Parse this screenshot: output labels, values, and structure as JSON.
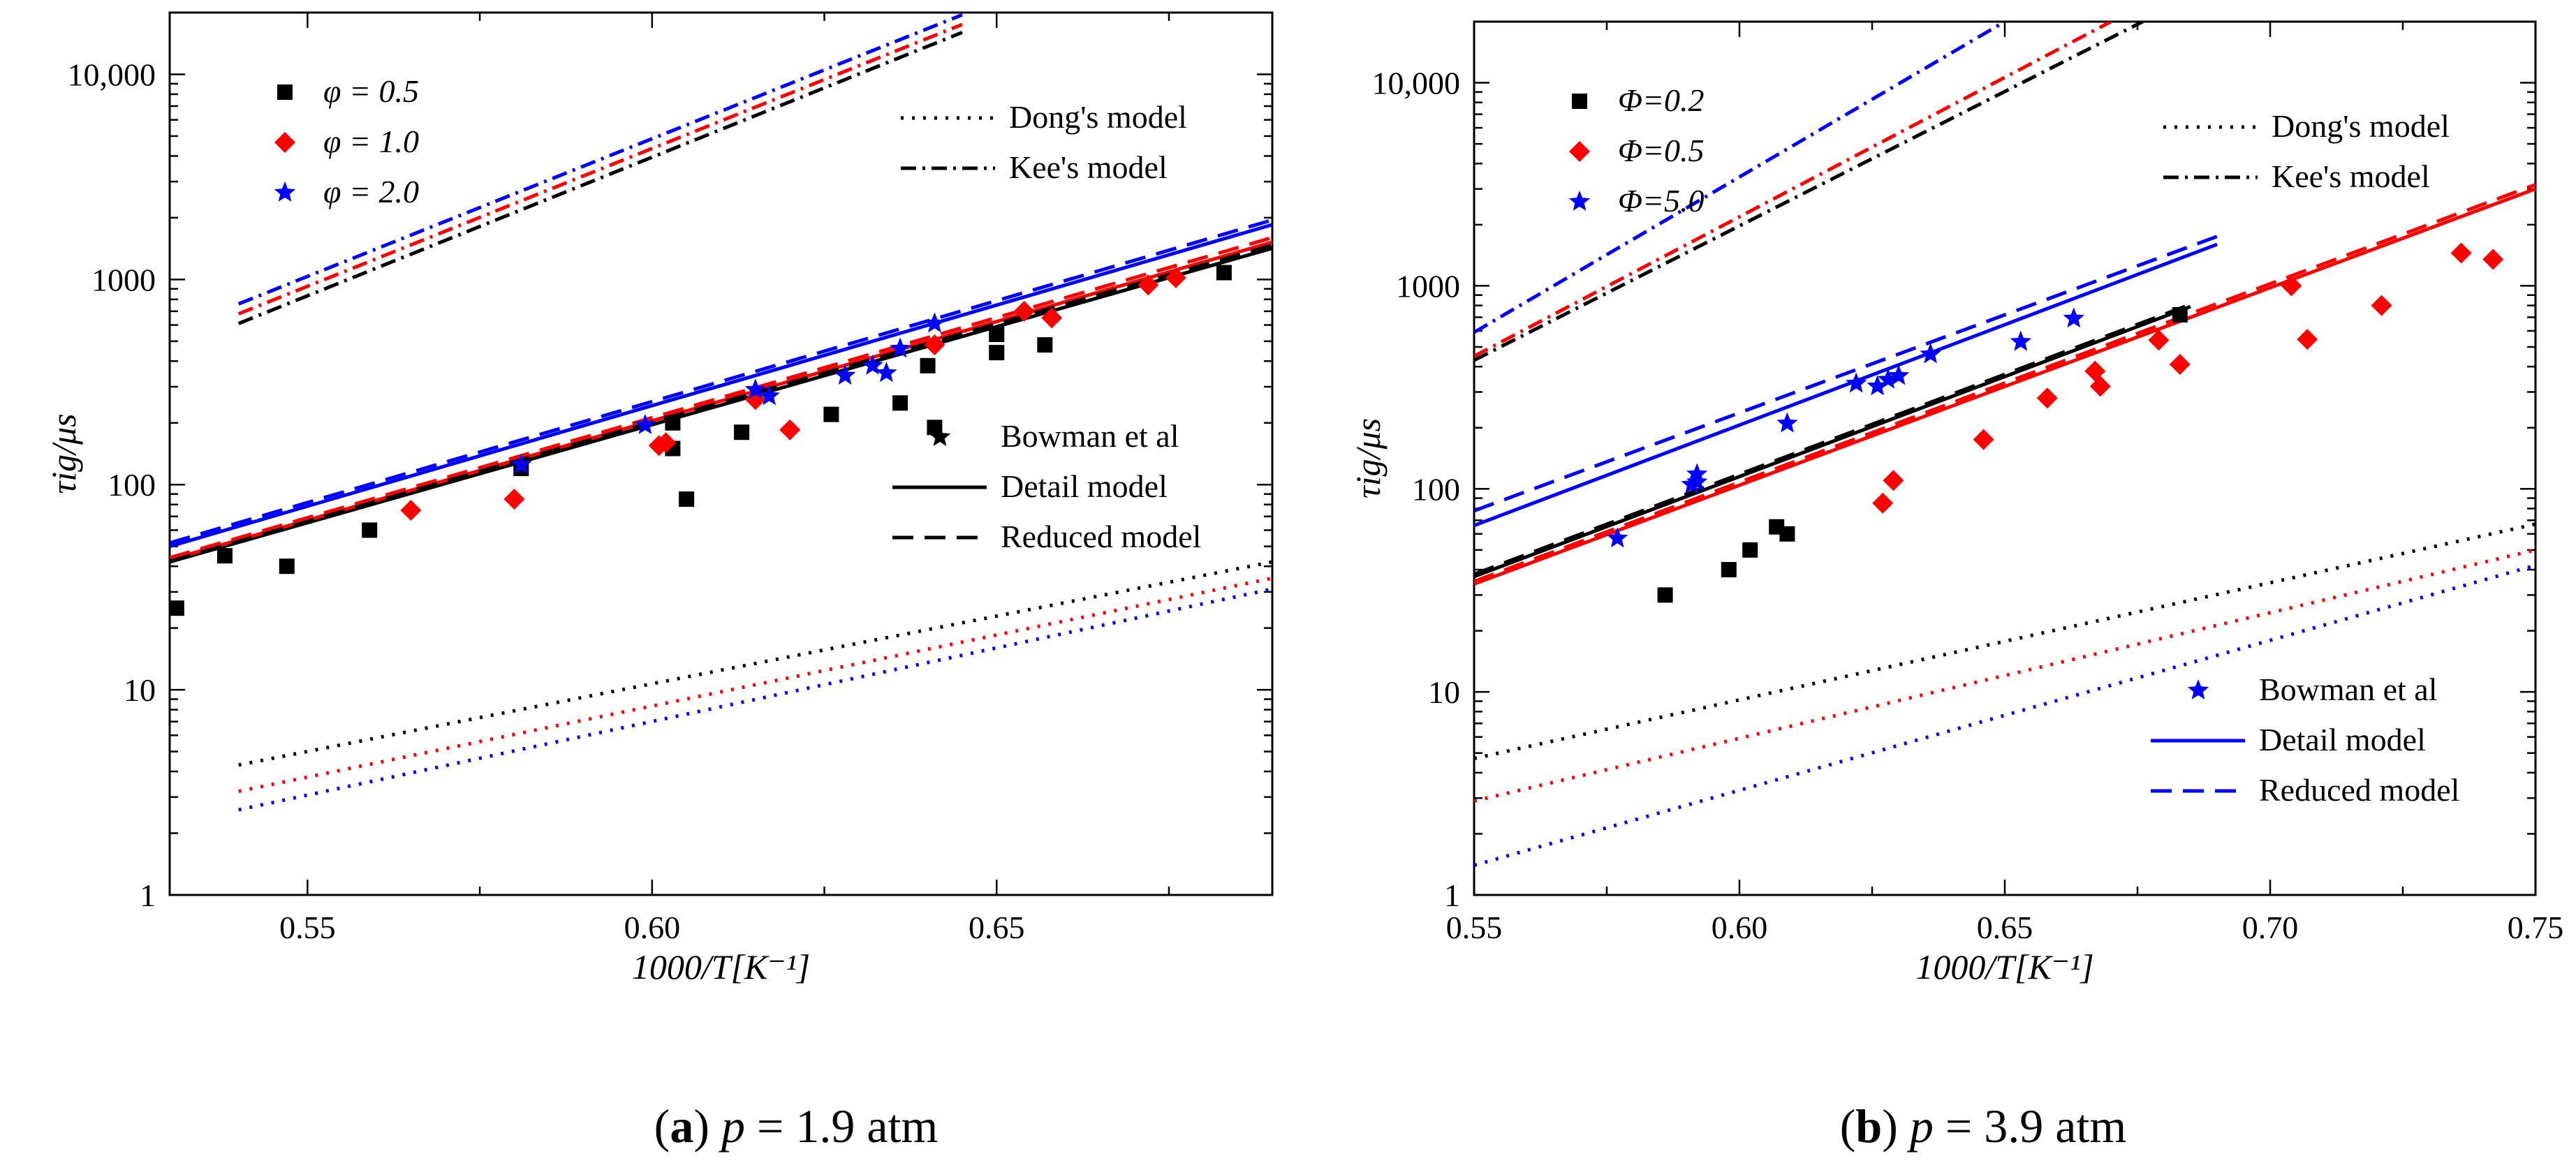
{
  "chart_data": [
    {
      "id": "a",
      "type": "scatter",
      "caption": {
        "label": "a",
        "var": "p",
        "rest": " = 1.9 atm"
      },
      "xlabel": "1000/T[K⁻¹]",
      "ylabel": "τig/μs",
      "xlim": [
        0.53,
        0.69
      ],
      "ylim": [
        1,
        20000
      ],
      "yscale": "log",
      "xticks": [
        0.55,
        0.6,
        0.65
      ],
      "xtick_labels": [
        "0.55",
        "0.60",
        "0.65"
      ],
      "yticks": [
        1,
        10,
        100,
        1000,
        10000
      ],
      "ytick_labels": [
        "1",
        "10",
        "100",
        "1000",
        "10,000"
      ],
      "series_legend": [
        {
          "label": "φ = 0.5",
          "color": "#000000",
          "marker": "square"
        },
        {
          "label": "φ = 1.0",
          "color": "#ff0000",
          "marker": "diamond"
        },
        {
          "label": "φ = 2.0",
          "color": "#0000ff",
          "marker": "star"
        }
      ],
      "model_legend_top": [
        {
          "label": "Dong's model",
          "style": "dotted"
        },
        {
          "label": "Kee's model",
          "style": "dashdot"
        }
      ],
      "model_legend_bottom": [
        {
          "label": "Bowman et al",
          "style": "none"
        },
        {
          "label": "Detail model",
          "style": "solid"
        },
        {
          "label": "Reduced model",
          "style": "dashed"
        }
      ],
      "model_legend_color": "#000000",
      "points": [
        {
          "color": "#000000",
          "marker": "square",
          "x": [
            0.531,
            0.538,
            0.547,
            0.559,
            0.581,
            0.603,
            0.603,
            0.605,
            0.613,
            0.626,
            0.636,
            0.64,
            0.641,
            0.65,
            0.65,
            0.657,
            0.683
          ],
          "y": [
            25,
            45,
            40,
            60,
            120,
            200,
            150,
            85,
            180,
            220,
            250,
            380,
            190,
            540,
            440,
            480,
            1080
          ]
        },
        {
          "color": "#ff0000",
          "marker": "diamond",
          "x": [
            0.565,
            0.58,
            0.601,
            0.602,
            0.615,
            0.62,
            0.641,
            0.654,
            0.658,
            0.672,
            0.676
          ],
          "y": [
            75,
            85,
            155,
            160,
            260,
            185,
            480,
            700,
            650,
            940,
            1020
          ]
        },
        {
          "color": "#0000ff",
          "marker": "star",
          "x": [
            0.581,
            0.599,
            0.615,
            0.617,
            0.628,
            0.632,
            0.634,
            0.636,
            0.641
          ],
          "y": [
            125,
            195,
            290,
            270,
            340,
            380,
            350,
            460,
            610
          ]
        }
      ],
      "lines": [
        {
          "color": "#000000",
          "style": "solid",
          "x": [
            0.53,
            0.69
          ],
          "y": [
            42,
            1420
          ]
        },
        {
          "color": "#ff0000",
          "style": "solid",
          "x": [
            0.53,
            0.69
          ],
          "y": [
            43,
            1520
          ]
        },
        {
          "color": "#0000ff",
          "style": "solid",
          "x": [
            0.53,
            0.69
          ],
          "y": [
            50,
            1850
          ]
        },
        {
          "color": "#000000",
          "style": "dashed",
          "x": [
            0.53,
            0.69
          ],
          "y": [
            43,
            1470
          ]
        },
        {
          "color": "#ff0000",
          "style": "dashed",
          "x": [
            0.53,
            0.69
          ],
          "y": [
            44,
            1600
          ]
        },
        {
          "color": "#0000ff",
          "style": "dashed",
          "x": [
            0.53,
            0.69
          ],
          "y": [
            52,
            1950
          ]
        },
        {
          "color": "#000000",
          "style": "dotted",
          "x": [
            0.54,
            0.69
          ],
          "y": [
            4.3,
            42
          ]
        },
        {
          "color": "#ff0000",
          "style": "dotted",
          "x": [
            0.54,
            0.69
          ],
          "y": [
            3.2,
            35
          ]
        },
        {
          "color": "#0000ff",
          "style": "dotted",
          "x": [
            0.54,
            0.69
          ],
          "y": [
            2.6,
            31
          ]
        },
        {
          "color": "#000000",
          "style": "dashdot",
          "x": [
            0.54,
            0.645
          ],
          "y": [
            610,
            16000
          ]
        },
        {
          "color": "#ff0000",
          "style": "dashdot",
          "x": [
            0.54,
            0.645
          ],
          "y": [
            680,
            17500
          ]
        },
        {
          "color": "#0000ff",
          "style": "dashdot",
          "x": [
            0.54,
            0.645
          ],
          "y": [
            760,
            19500
          ]
        }
      ]
    },
    {
      "id": "b",
      "type": "scatter",
      "caption": {
        "label": "b",
        "var": "p",
        "rest": " = 3.9 atm"
      },
      "xlabel": "1000/T[K⁻¹]",
      "ylabel": "τig/μs",
      "xlim": [
        0.55,
        0.75
      ],
      "ylim": [
        1,
        20000
      ],
      "yscale": "log",
      "xticks": [
        0.55,
        0.6,
        0.65,
        0.7,
        0.75
      ],
      "xtick_labels": [
        "0.55",
        "0.60",
        "0.65",
        "0.70",
        "0.75"
      ],
      "yticks": [
        1,
        10,
        100,
        1000,
        10000
      ],
      "ytick_labels": [
        "1",
        "10",
        "100",
        "1000",
        "10,000"
      ],
      "series_legend": [
        {
          "label": "Φ=0.2",
          "color": "#000000",
          "marker": "square"
        },
        {
          "label": "Φ=0.5",
          "color": "#ff0000",
          "marker": "diamond"
        },
        {
          "label": "Φ=5.0",
          "color": "#0000ff",
          "marker": "star"
        }
      ],
      "model_legend_top": [
        {
          "label": "Dong's model",
          "style": "dotted"
        },
        {
          "label": "Kee's model",
          "style": "dashdot"
        }
      ],
      "model_legend_bottom": [
        {
          "label": "Bowman et al",
          "style": "none"
        },
        {
          "label": "Detail model",
          "style": "solid"
        },
        {
          "label": "Reduced model",
          "style": "dashed"
        }
      ],
      "model_legend_color": "#0000ff",
      "points": [
        {
          "color": "#000000",
          "marker": "square",
          "x": [
            0.586,
            0.598,
            0.602,
            0.607,
            0.609,
            0.683
          ],
          "y": [
            30,
            40,
            50,
            65,
            60,
            720
          ]
        },
        {
          "color": "#ff0000",
          "marker": "diamond",
          "x": [
            0.627,
            0.629,
            0.646,
            0.658,
            0.667,
            0.668,
            0.679,
            0.683,
            0.704,
            0.707,
            0.721,
            0.736,
            0.742
          ],
          "y": [
            85,
            110,
            175,
            280,
            380,
            320,
            540,
            410,
            1000,
            545,
            800,
            1450,
            1350
          ]
        },
        {
          "color": "#0000ff",
          "marker": "star",
          "x": [
            0.577,
            0.591,
            0.592,
            0.592,
            0.609,
            0.622,
            0.626,
            0.628,
            0.63,
            0.636,
            0.653,
            0.663
          ],
          "y": [
            57,
            105,
            108,
            118,
            210,
            330,
            320,
            345,
            360,
            460,
            530,
            690
          ]
        }
      ],
      "lines": [
        {
          "color": "#000000",
          "style": "solid",
          "x": [
            0.55,
            0.685
          ],
          "y": [
            37,
            790
          ]
        },
        {
          "color": "#ff0000",
          "style": "solid",
          "x": [
            0.55,
            0.75
          ],
          "y": [
            34,
            3000
          ]
        },
        {
          "color": "#0000ff",
          "style": "solid",
          "x": [
            0.55,
            0.69
          ],
          "y": [
            66,
            1600
          ]
        },
        {
          "color": "#000000",
          "style": "dashed",
          "x": [
            0.55,
            0.685
          ],
          "y": [
            38,
            810
          ]
        },
        {
          "color": "#ff0000",
          "style": "dashed",
          "x": [
            0.55,
            0.75
          ],
          "y": [
            35,
            3150
          ]
        },
        {
          "color": "#0000ff",
          "style": "dashed",
          "x": [
            0.55,
            0.69
          ],
          "y": [
            78,
            1750
          ]
        },
        {
          "color": "#000000",
          "style": "dotted",
          "x": [
            0.55,
            0.75
          ],
          "y": [
            4.7,
            67
          ]
        },
        {
          "color": "#ff0000",
          "style": "dotted",
          "x": [
            0.55,
            0.75
          ],
          "y": [
            2.9,
            50
          ]
        },
        {
          "color": "#0000ff",
          "style": "dotted",
          "x": [
            0.55,
            0.75
          ],
          "y": [
            1.4,
            42
          ]
        },
        {
          "color": "#000000",
          "style": "dashdot",
          "x": [
            0.55,
            0.676
          ],
          "y": [
            430,
            20000
          ]
        },
        {
          "color": "#ff0000",
          "style": "dashdot",
          "x": [
            0.55,
            0.67
          ],
          "y": [
            450,
            20000
          ]
        },
        {
          "color": "#0000ff",
          "style": "dashdot",
          "x": [
            0.55,
            0.65
          ],
          "y": [
            590,
            20000
          ]
        }
      ]
    }
  ]
}
